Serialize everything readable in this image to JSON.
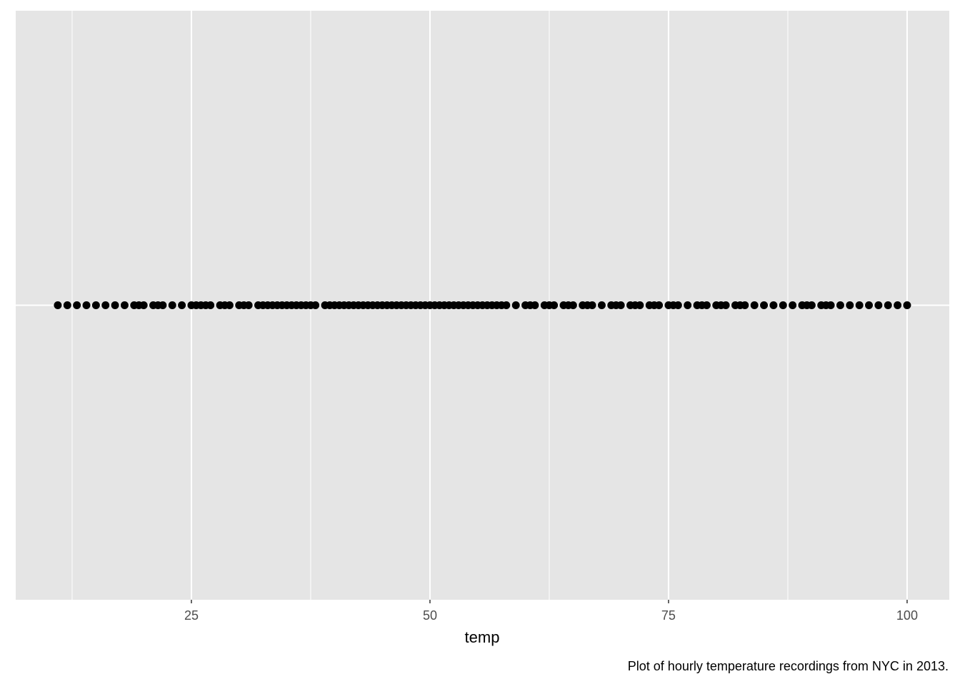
{
  "chart_data": {
    "type": "strip",
    "x": [
      11,
      12,
      13,
      14,
      15,
      16,
      17,
      18,
      19,
      19.5,
      20,
      21,
      21.5,
      22,
      23,
      24,
      25,
      25.5,
      26,
      26.5,
      27,
      28,
      28.5,
      29,
      30,
      30.5,
      31,
      32,
      32.5,
      33,
      33.5,
      34,
      34.5,
      35,
      35.5,
      36,
      36.5,
      37,
      37.5,
      38,
      39,
      39.5,
      40,
      40.5,
      41,
      41.5,
      42,
      42.5,
      43,
      43.5,
      44,
      44.5,
      45,
      45.5,
      46,
      46.5,
      47,
      47.5,
      48,
      48.5,
      49,
      49.5,
      50,
      50.5,
      51,
      51.5,
      52,
      52.5,
      53,
      53.5,
      54,
      54.5,
      55,
      55.5,
      56,
      56.5,
      57,
      57.5,
      58,
      59,
      60,
      60.5,
      61,
      62,
      62.5,
      63,
      64,
      64.5,
      65,
      66,
      66.5,
      67,
      68,
      69,
      69.5,
      70,
      71,
      71.5,
      72,
      73,
      73.5,
      74,
      75,
      75.5,
      76,
      77,
      78,
      78.5,
      79,
      80,
      80.5,
      81,
      82,
      82.5,
      83,
      84,
      85,
      86,
      87,
      88,
      89,
      89.5,
      90,
      91,
      91.5,
      92,
      93,
      94,
      95,
      96,
      97,
      98,
      99,
      100
    ],
    "color": "#000000",
    "xlabel": "temp",
    "caption": "Plot of hourly temperature recordings from NYC in 2013.",
    "xlim": [
      6.59,
      104.42
    ],
    "xticks": [
      25,
      50,
      75,
      100
    ],
    "x_minor_ticks": [
      12.5,
      37.5,
      62.5,
      87.5
    ],
    "grid": true
  }
}
